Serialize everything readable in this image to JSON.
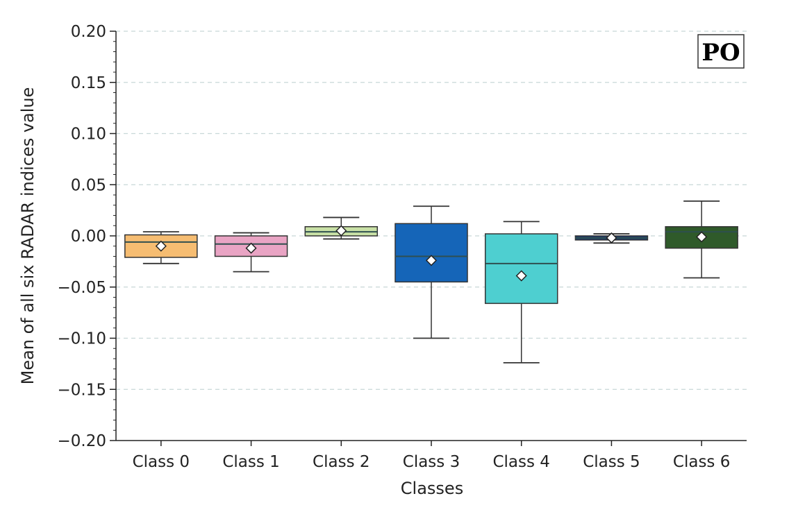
{
  "chart_data": {
    "type": "box",
    "panel_label": "PO",
    "xlabel": "Classes",
    "ylabel": "Mean of all six RADAR indices value",
    "ylim": [
      -0.2,
      0.2
    ],
    "y_ticks": [
      "0.20",
      "0.15",
      "0.10",
      "0.05",
      "0.00",
      "−0.05",
      "−0.10",
      "−0.15",
      "−0.20"
    ],
    "y_tick_values": [
      0.2,
      0.15,
      0.1,
      0.05,
      0.0,
      -0.05,
      -0.1,
      -0.15,
      -0.2
    ],
    "grid": "horizontal dashed",
    "categories": [
      "Class 0",
      "Class 1",
      "Class 2",
      "Class 3",
      "Class 4",
      "Class 5",
      "Class 6"
    ],
    "boxes": [
      {
        "category": "Class 0",
        "whisker_low": -0.027,
        "q1": -0.021,
        "median": -0.006,
        "q3": 0.001,
        "whisker_high": 0.004,
        "mean": -0.01,
        "color": "#f6bd72"
      },
      {
        "category": "Class 1",
        "whisker_low": -0.035,
        "q1": -0.02,
        "median": -0.008,
        "q3": 0.0,
        "whisker_high": 0.003,
        "mean": -0.012,
        "color": "#e9a4c4"
      },
      {
        "category": "Class 2",
        "whisker_low": -0.003,
        "q1": 0.0,
        "median": 0.004,
        "q3": 0.009,
        "whisker_high": 0.018,
        "mean": 0.005,
        "color": "#c9e1a6"
      },
      {
        "category": "Class 3",
        "whisker_low": -0.1,
        "q1": -0.045,
        "median": -0.02,
        "q3": 0.012,
        "whisker_high": 0.029,
        "mean": -0.024,
        "color": "#1565b8"
      },
      {
        "category": "Class 4",
        "whisker_low": -0.124,
        "q1": -0.066,
        "median": -0.027,
        "q3": 0.002,
        "whisker_high": 0.014,
        "mean": -0.039,
        "color": "#4ecfd0"
      },
      {
        "category": "Class 5",
        "whisker_low": -0.007,
        "q1": -0.004,
        "median": -0.002,
        "q3": 0.0,
        "whisker_high": 0.002,
        "mean": -0.002,
        "color": "#1c3a6e"
      },
      {
        "category": "Class 6",
        "whisker_low": -0.041,
        "q1": -0.012,
        "median": 0.004,
        "q3": 0.009,
        "whisker_high": 0.034,
        "mean": -0.001,
        "color": "#2f5a2a"
      }
    ]
  }
}
